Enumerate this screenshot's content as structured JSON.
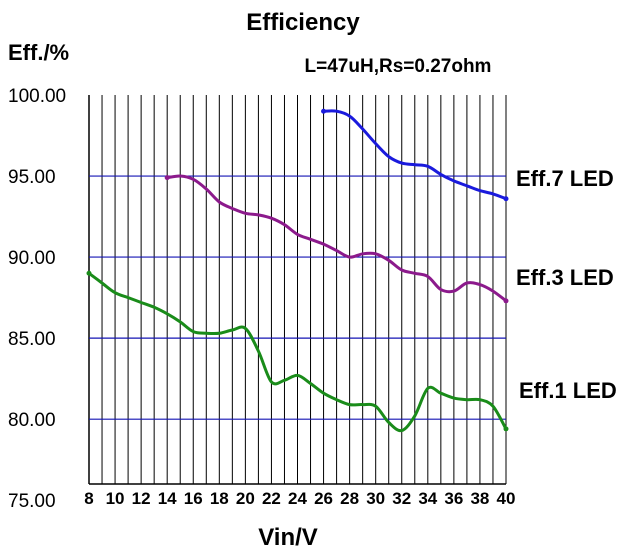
{
  "chart_data": {
    "type": "line",
    "title": "Efficiency",
    "subtitle": "L=47uH,Rs=0.27ohm",
    "ylabel": "Eff./%",
    "xlabel": "Vin/V",
    "xlim": [
      8,
      40
    ],
    "ylim": [
      75,
      100
    ],
    "x_ticks": [
      "8",
      "10",
      "12",
      "14",
      "16",
      "18",
      "20",
      "22",
      "24",
      "26",
      "28",
      "30",
      "32",
      "34",
      "36",
      "38",
      "40"
    ],
    "y_ticks": [
      "100.00",
      "95.00",
      "90.00",
      "85.00",
      "80.00",
      "75.00"
    ],
    "hgrid_y": [
      95,
      90,
      85,
      80
    ],
    "colors": {
      "grid": "#000000",
      "hgrid": "#1414b4"
    },
    "series": [
      {
        "name": "Eff.7 LED",
        "color": "#1a1add",
        "x": [
          26,
          27,
          28,
          29,
          30,
          31,
          32,
          33,
          34,
          35,
          36,
          37,
          38,
          39,
          40
        ],
        "y": [
          99.0,
          99.0,
          98.7,
          97.9,
          97.0,
          96.2,
          95.8,
          95.7,
          95.6,
          95.1,
          94.7,
          94.4,
          94.1,
          93.9,
          93.6
        ]
      },
      {
        "name": "Eff.3 LED",
        "color": "#8c1a8c",
        "x": [
          14,
          15,
          16,
          17,
          18,
          19,
          20,
          21,
          22,
          23,
          24,
          25,
          26,
          27,
          28,
          29,
          30,
          31,
          32,
          33,
          34,
          35,
          36,
          37,
          38,
          39,
          40
        ],
        "y": [
          94.9,
          95.0,
          94.8,
          94.2,
          93.4,
          93.0,
          92.7,
          92.6,
          92.4,
          92.0,
          91.4,
          91.1,
          90.8,
          90.4,
          90.0,
          90.2,
          90.2,
          89.8,
          89.2,
          89.0,
          88.8,
          88.0,
          87.9,
          88.4,
          88.3,
          87.9,
          87.3
        ]
      },
      {
        "name": "Eff.1 LED",
        "color": "#1a8c1a",
        "x": [
          8,
          9,
          10,
          11,
          12,
          13,
          14,
          15,
          16,
          17,
          18,
          19,
          20,
          21,
          22,
          23,
          24,
          25,
          26,
          27,
          28,
          29,
          30,
          31,
          32,
          33,
          34,
          35,
          36,
          37,
          38,
          39,
          40
        ],
        "y": [
          89.0,
          88.4,
          87.8,
          87.5,
          87.2,
          86.9,
          86.5,
          86.0,
          85.4,
          85.3,
          85.3,
          85.5,
          85.6,
          84.2,
          82.3,
          82.4,
          82.7,
          82.2,
          81.6,
          81.2,
          80.9,
          80.9,
          80.8,
          79.8,
          79.3,
          80.2,
          81.9,
          81.6,
          81.3,
          81.2,
          81.2,
          80.8,
          79.4
        ]
      }
    ]
  }
}
